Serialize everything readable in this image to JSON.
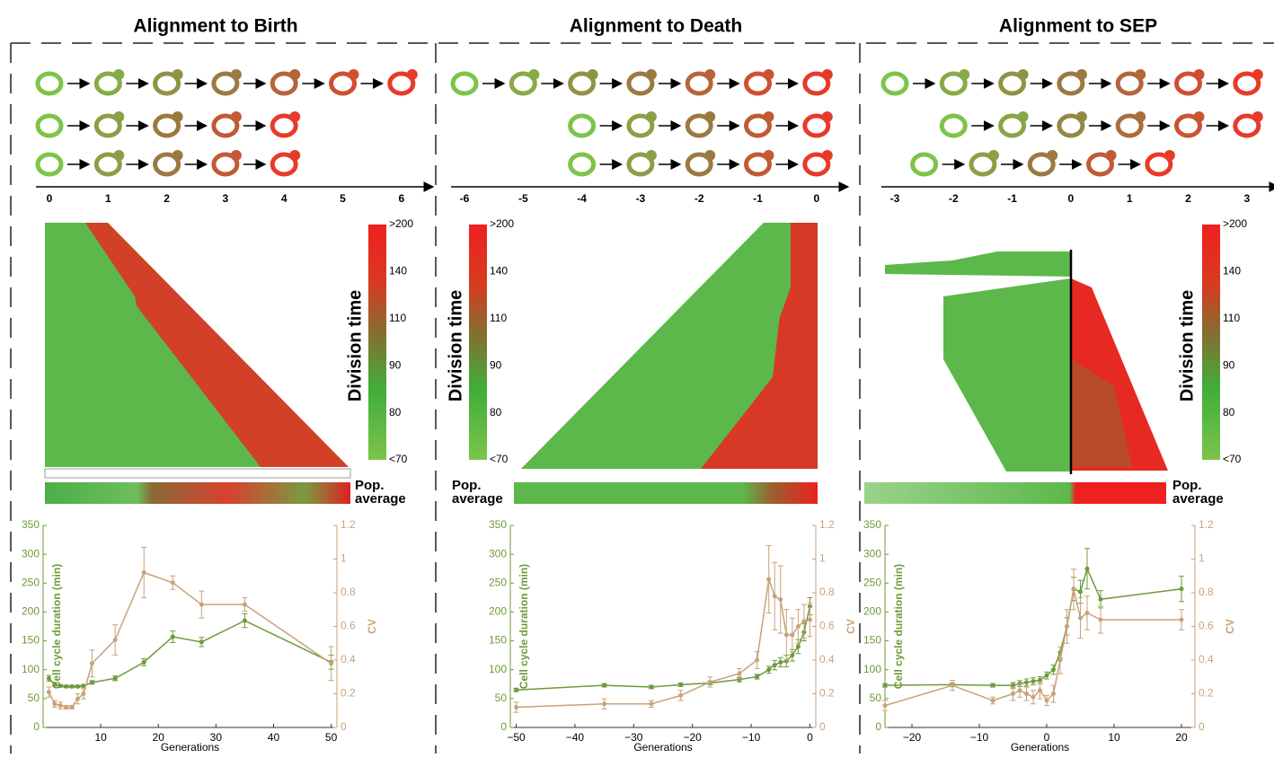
{
  "panels": [
    {
      "title": "Alignment to Birth",
      "axis_ticks": [
        "0",
        "1",
        "2",
        "3",
        "4",
        "5",
        "6"
      ],
      "colorbar_title": "Division time",
      "colorbar_labels": [
        ">200",
        "140",
        "110",
        "90",
        "80",
        "<70"
      ],
      "pop_label": [
        "Pop.",
        "average"
      ]
    },
    {
      "title": "Alignment to Death",
      "axis_ticks": [
        "-6",
        "-5",
        "-4",
        "-3",
        "-2",
        "-1",
        "0"
      ],
      "colorbar_title": "Division time",
      "colorbar_labels": [
        ">200",
        "140",
        "110",
        "90",
        "80",
        "<70"
      ],
      "pop_label": [
        "Pop.",
        "average"
      ]
    },
    {
      "title": "Alignment to SEP",
      "axis_ticks": [
        "-3",
        "-2",
        "-1",
        "0",
        "1",
        "2",
        "3"
      ],
      "colorbar_title": "Division time",
      "colorbar_labels": [
        ">200",
        "140",
        "110",
        "90",
        "80",
        "<70"
      ],
      "pop_label": [
        "Pop.",
        "average"
      ]
    }
  ],
  "chart_data": [
    {
      "type": "line",
      "xlabel": "Generations",
      "ylabel": "Cell cycle duration (min)",
      "y2label": "CV",
      "xlim": [
        0,
        51
      ],
      "xticks": [
        10,
        20,
        30,
        40,
        50
      ],
      "ylim": [
        0,
        350
      ],
      "yticks": [
        0,
        50,
        100,
        150,
        200,
        250,
        300,
        350
      ],
      "y2lim": [
        0,
        1.2
      ],
      "y2ticks": [
        0,
        0.2,
        0.4,
        0.6,
        0.8,
        1,
        1.2
      ],
      "x": [
        1,
        2,
        3,
        4,
        5,
        6,
        7,
        8.5,
        12.5,
        17.5,
        22.5,
        27.5,
        35,
        50
      ],
      "series": [
        {
          "color": "#6f9a3a",
          "values": [
            85,
            75,
            72,
            71,
            71,
            71,
            72,
            78,
            85,
            113,
            157,
            148,
            185,
            113
          ],
          "errors": [
            5,
            3,
            2,
            2,
            2,
            2,
            2,
            3,
            4,
            6,
            10,
            8,
            12,
            12
          ]
        },
        {
          "color": "#c8a27a",
          "axis": "y2",
          "values": [
            0.21,
            0.14,
            0.13,
            0.12,
            0.12,
            0.17,
            0.2,
            0.38,
            0.52,
            0.92,
            0.86,
            0.73,
            0.73,
            0.38
          ],
          "errors": [
            0.03,
            0.02,
            0.02,
            0.01,
            0.01,
            0.03,
            0.03,
            0.08,
            0.09,
            0.15,
            0.04,
            0.08,
            0.04,
            0.1
          ]
        }
      ]
    },
    {
      "type": "line",
      "xlabel": "Generations",
      "ylabel": "Cell cycle duration (min)",
      "y2label": "CV",
      "xlim": [
        -51,
        1
      ],
      "xticks": [
        {
          "value": -50,
          "label": "−50"
        },
        {
          "value": -40,
          "label": "−40"
        },
        {
          "value": -30,
          "label": "−30"
        },
        {
          "value": -20,
          "label": "−20"
        },
        {
          "value": -10,
          "label": "−10"
        },
        0
      ],
      "ylim": [
        0,
        350
      ],
      "yticks": [
        0,
        50,
        100,
        150,
        200,
        250,
        300,
        350
      ],
      "y2lim": [
        0,
        1.2
      ],
      "y2ticks": [
        0,
        0.2,
        0.4,
        0.6,
        0.8,
        1,
        1.2
      ],
      "x": [
        -50,
        -35,
        -27,
        -22,
        -17,
        -12,
        -9,
        -7,
        -6,
        -5,
        -4,
        -3,
        -2,
        -1,
        0
      ],
      "series": [
        {
          "color": "#6f9a3a",
          "values": [
            65,
            73,
            70,
            74,
            77,
            83,
            88,
            100,
            108,
            113,
            115,
            125,
            140,
            165,
            210
          ],
          "errors": [
            3,
            3,
            3,
            3,
            3,
            4,
            4,
            6,
            8,
            8,
            10,
            10,
            12,
            15,
            15
          ]
        },
        {
          "color": "#c8a27a",
          "axis": "y2",
          "values": [
            0.12,
            0.14,
            0.14,
            0.19,
            0.27,
            0.32,
            0.4,
            0.88,
            0.78,
            0.76,
            0.55,
            0.55,
            0.6,
            0.63,
            0.64
          ],
          "errors": [
            0.03,
            0.03,
            0.02,
            0.03,
            0.03,
            0.03,
            0.05,
            0.2,
            0.2,
            0.2,
            0.15,
            0.1,
            0.1,
            0.1,
            0.1
          ]
        }
      ]
    },
    {
      "type": "line",
      "xlabel": "Generations",
      "ylabel": "Cell cycle duration (min)",
      "y2label": "CV",
      "xlim": [
        -24,
        22
      ],
      "xticks": [
        {
          "value": -20,
          "label": "−20"
        },
        {
          "value": -10,
          "label": "−10"
        },
        0,
        10,
        20
      ],
      "ylim": [
        0,
        350
      ],
      "yticks": [
        0,
        50,
        100,
        150,
        200,
        250,
        300,
        350
      ],
      "y2lim": [
        0,
        1.2
      ],
      "y2ticks": [
        0,
        0.2,
        0.4,
        0.6,
        0.8,
        1,
        1.2
      ],
      "x": [
        -24,
        -14,
        -8,
        -5,
        -4,
        -3,
        -2,
        -1,
        0,
        1,
        2,
        3,
        4,
        5,
        6,
        8,
        20
      ],
      "series": [
        {
          "color": "#6f9a3a",
          "values": [
            73,
            74,
            73,
            73,
            76,
            78,
            80,
            82,
            90,
            100,
            130,
            175,
            240,
            235,
            275,
            222,
            240
          ],
          "errors": [
            3,
            3,
            3,
            5,
            5,
            6,
            6,
            6,
            6,
            8,
            10,
            15,
            20,
            20,
            35,
            15,
            22
          ]
        },
        {
          "color": "#c8a27a",
          "axis": "y2",
          "values": [
            0.13,
            0.25,
            0.16,
            0.2,
            0.22,
            0.2,
            0.18,
            0.22,
            0.16,
            0.2,
            0.4,
            0.6,
            0.82,
            0.65,
            0.68,
            0.64,
            0.64
          ],
          "errors": [
            0.03,
            0.03,
            0.02,
            0.04,
            0.04,
            0.04,
            0.04,
            0.05,
            0.03,
            0.05,
            0.08,
            0.1,
            0.12,
            0.12,
            0.1,
            0.08,
            0.06
          ]
        }
      ]
    }
  ]
}
